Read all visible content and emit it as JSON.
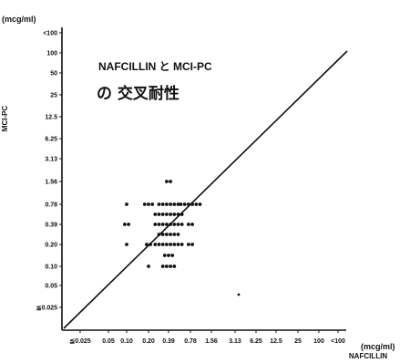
{
  "chart_data": {
    "type": "scatter",
    "title": "NAFCILLIN と MCI-PC",
    "subtitle": "の 交叉耐性",
    "xlabel": "NAFCILLIN",
    "ylabel": "MCI-PC",
    "x_unit": "(mcg/ml)",
    "y_unit": "(mcg/ml)",
    "x_ticks": [
      "≦0.025",
      "0.05",
      "0.10",
      "0.20",
      "0.39",
      "0.78",
      "1.56",
      "3.13",
      "6.25",
      "12.5",
      "25",
      "100",
      "<100"
    ],
    "y_ticks": [
      "≦0.025",
      "0.05",
      "0.10",
      "0.20",
      "0.39",
      "0.78",
      "1.56",
      "3.13",
      "6.25",
      "12.5",
      "25",
      "50",
      "100",
      "<100"
    ],
    "reference_line": "y = x",
    "points": [
      {
        "x": "0.10",
        "y": "0.78"
      },
      {
        "x": "0.10",
        "y": "0.39"
      },
      {
        "x": "0.10",
        "y": "0.20"
      },
      {
        "x": "0.05",
        "y": "0.39"
      },
      {
        "x": "0.20",
        "y": "0.78"
      },
      {
        "x": "0.20",
        "y": "0.20"
      },
      {
        "x": "0.20",
        "y": "0.10"
      },
      {
        "x": "0.39",
        "y": "1.56"
      },
      {
        "x": "0.39",
        "y": "0.78"
      },
      {
        "x": "0.39",
        "y": "0.39"
      },
      {
        "x": "0.39",
        "y": "0.20"
      },
      {
        "x": "0.39",
        "y": "0.10"
      },
      {
        "x": "0.78",
        "y": "0.78"
      },
      {
        "x": "0.78",
        "y": "0.39"
      },
      {
        "x": "0.78",
        "y": "0.20"
      }
    ],
    "clusters": [
      {
        "xi": 2,
        "yi": 5,
        "n": 1
      },
      {
        "xi": 2,
        "yi": 4,
        "n": 2
      },
      {
        "xi": 2,
        "yi": 3,
        "n": 1
      },
      {
        "xi": 3,
        "yi": 5,
        "n": 3
      },
      {
        "xi": 3,
        "yi": 3,
        "n": 2
      },
      {
        "xi": 3,
        "yi": 2,
        "n": 1
      },
      {
        "xi": 4,
        "yi": 6,
        "n": 2
      },
      {
        "xi": 4,
        "yi": 5,
        "n": 6
      },
      {
        "xi": 4,
        "yi": 4.5,
        "n": 8
      },
      {
        "xi": 4,
        "yi": 4,
        "n": 8
      },
      {
        "xi": 4,
        "yi": 3.5,
        "n": 6
      },
      {
        "xi": 4,
        "yi": 3,
        "n": 8
      },
      {
        "xi": 4,
        "yi": 2.5,
        "n": 3
      },
      {
        "xi": 4,
        "yi": 2,
        "n": 4
      },
      {
        "xi": 5,
        "yi": 5,
        "n": 6
      },
      {
        "xi": 5,
        "yi": 4,
        "n": 2
      },
      {
        "xi": 5,
        "yi": 3,
        "n": 2
      }
    ]
  }
}
